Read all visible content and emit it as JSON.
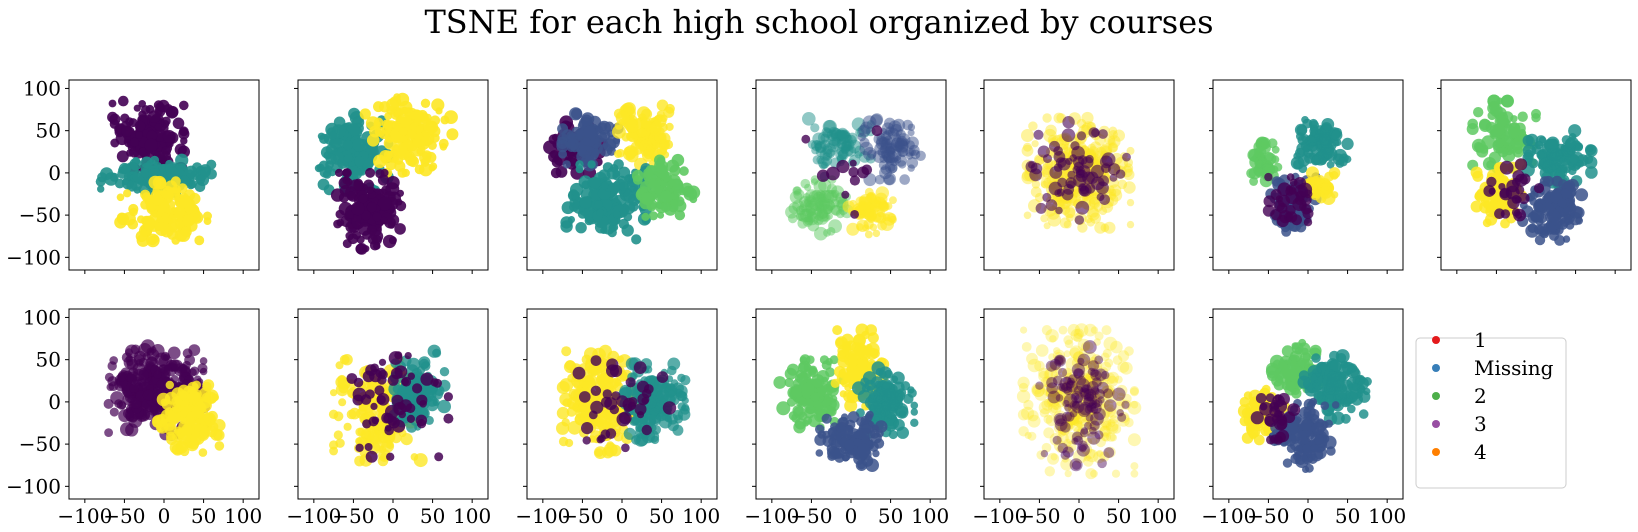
{
  "figure_title": "TSNE for each high school organized by courses",
  "palette": {
    "cat0": "#440154",
    "cat1": "#3b528b",
    "cat2": "#21918c",
    "cat3": "#5ec962",
    "cat4": "#fde725"
  },
  "legend": {
    "entries": [
      {
        "label": "1",
        "color": "#e41a1c"
      },
      {
        "label": "Missing",
        "color": "#377eb8"
      },
      {
        "label": "2",
        "color": "#4daf4a"
      },
      {
        "label": "3",
        "color": "#984ea3"
      },
      {
        "label": "4",
        "color": "#ff7f00"
      }
    ]
  },
  "chart_data": {
    "type": "scatter",
    "layout": {
      "rows": 2,
      "cols": 7,
      "panels": 13
    },
    "xlim": [
      -120,
      120
    ],
    "ylim": [
      -115,
      110
    ],
    "xticks": [
      -100,
      -50,
      0,
      50,
      100
    ],
    "yticks": [
      100,
      50,
      0,
      -50,
      -100
    ],
    "xtick_labels": [
      "−100",
      "−50",
      "0",
      "50",
      "100"
    ],
    "ytick_labels": [
      "100",
      "50",
      "0",
      "−50",
      "−100"
    ],
    "panels": [
      {
        "clusters": [
          {
            "c": 0,
            "cx": -20,
            "cy": 45,
            "rx": 45,
            "ry": 40,
            "n": 160,
            "a": 0.9
          },
          {
            "c": 2,
            "cx": -10,
            "cy": -5,
            "rx": 70,
            "ry": 20,
            "n": 130,
            "a": 0.9
          },
          {
            "c": 4,
            "cx": 0,
            "cy": -45,
            "rx": 55,
            "ry": 35,
            "n": 140,
            "a": 0.9
          }
        ]
      },
      {
        "clusters": [
          {
            "c": 2,
            "cx": -55,
            "cy": 25,
            "rx": 50,
            "ry": 45,
            "n": 150,
            "a": 0.9
          },
          {
            "c": 4,
            "cx": 20,
            "cy": 45,
            "rx": 55,
            "ry": 45,
            "n": 150,
            "a": 0.9
          },
          {
            "c": 0,
            "cx": -30,
            "cy": -45,
            "rx": 40,
            "ry": 45,
            "n": 150,
            "a": 0.9
          }
        ]
      },
      {
        "clusters": [
          {
            "c": 0,
            "cx": -60,
            "cy": 30,
            "rx": 40,
            "ry": 30,
            "n": 70,
            "a": 0.9
          },
          {
            "c": 1,
            "cx": -40,
            "cy": 40,
            "rx": 35,
            "ry": 30,
            "n": 90,
            "a": 0.85
          },
          {
            "c": 4,
            "cx": 30,
            "cy": 45,
            "rx": 35,
            "ry": 35,
            "n": 110,
            "a": 0.8
          },
          {
            "c": 2,
            "cx": -20,
            "cy": -35,
            "rx": 50,
            "ry": 45,
            "n": 170,
            "a": 0.9
          },
          {
            "c": 3,
            "cx": 55,
            "cy": -20,
            "rx": 35,
            "ry": 35,
            "n": 100,
            "a": 0.9
          }
        ]
      },
      {
        "clusters": [
          {
            "c": 2,
            "cx": -15,
            "cy": 30,
            "rx": 40,
            "ry": 35,
            "n": 80,
            "a": 0.5
          },
          {
            "c": 1,
            "cx": 50,
            "cy": 30,
            "rx": 38,
            "ry": 38,
            "n": 90,
            "a": 0.5
          },
          {
            "c": 3,
            "cx": -40,
            "cy": -40,
            "rx": 35,
            "ry": 32,
            "n": 90,
            "a": 0.5
          },
          {
            "c": 4,
            "cx": 25,
            "cy": -45,
            "rx": 28,
            "ry": 28,
            "n": 70,
            "a": 0.6
          },
          {
            "c": 0,
            "cx": 0,
            "cy": 0,
            "rx": 60,
            "ry": 50,
            "n": 12,
            "a": 0.8
          }
        ]
      },
      {
        "clusters": [
          {
            "c": 4,
            "cx": 0,
            "cy": 0,
            "rx": 65,
            "ry": 65,
            "n": 320,
            "a": 0.45
          },
          {
            "c": 0,
            "cx": 0,
            "cy": 0,
            "rx": 60,
            "ry": 60,
            "n": 70,
            "a": 0.6
          }
        ]
      },
      {
        "clusters": [
          {
            "c": 2,
            "cx": 15,
            "cy": 35,
            "rx": 35,
            "ry": 30,
            "n": 90,
            "a": 0.85
          },
          {
            "c": 3,
            "cx": -55,
            "cy": 10,
            "rx": 18,
            "ry": 25,
            "n": 45,
            "a": 0.8
          },
          {
            "c": 1,
            "cx": -20,
            "cy": -35,
            "rx": 30,
            "ry": 35,
            "n": 90,
            "a": 0.85
          },
          {
            "c": 4,
            "cx": 20,
            "cy": -15,
            "rx": 22,
            "ry": 15,
            "n": 40,
            "a": 0.8
          },
          {
            "c": 0,
            "cx": -25,
            "cy": -35,
            "rx": 25,
            "ry": 30,
            "n": 35,
            "a": 0.8
          }
        ]
      },
      {
        "clusters": [
          {
            "c": 3,
            "cx": -40,
            "cy": 45,
            "rx": 40,
            "ry": 40,
            "n": 90,
            "a": 0.85
          },
          {
            "c": 2,
            "cx": 30,
            "cy": 15,
            "rx": 40,
            "ry": 35,
            "n": 110,
            "a": 0.85
          },
          {
            "c": 4,
            "cx": -45,
            "cy": -25,
            "rx": 30,
            "ry": 35,
            "n": 100,
            "a": 0.85
          },
          {
            "c": 1,
            "cx": 20,
            "cy": -45,
            "rx": 38,
            "ry": 35,
            "n": 110,
            "a": 0.85
          },
          {
            "c": 0,
            "cx": -30,
            "cy": -20,
            "rx": 35,
            "ry": 30,
            "n": 25,
            "a": 0.8
          }
        ]
      },
      {
        "clusters": [
          {
            "c": 0,
            "cx": -10,
            "cy": 15,
            "rx": 60,
            "ry": 55,
            "n": 320,
            "a": 0.7
          },
          {
            "c": 4,
            "cx": 30,
            "cy": -20,
            "rx": 40,
            "ry": 40,
            "n": 150,
            "a": 0.85
          }
        ]
      },
      {
        "clusters": [
          {
            "c": 4,
            "cx": -20,
            "cy": -10,
            "rx": 55,
            "ry": 60,
            "n": 170,
            "a": 0.8
          },
          {
            "c": 2,
            "cx": 30,
            "cy": 15,
            "rx": 35,
            "ry": 45,
            "n": 120,
            "a": 0.8
          },
          {
            "c": 0,
            "cx": 0,
            "cy": 0,
            "rx": 70,
            "ry": 65,
            "n": 60,
            "a": 0.85
          }
        ]
      },
      {
        "clusters": [
          {
            "c": 4,
            "cx": -30,
            "cy": 0,
            "rx": 45,
            "ry": 60,
            "n": 190,
            "a": 0.8
          },
          {
            "c": 2,
            "cx": 40,
            "cy": 0,
            "rx": 40,
            "ry": 45,
            "n": 160,
            "a": 0.75
          },
          {
            "c": 0,
            "cx": 0,
            "cy": 0,
            "rx": 60,
            "ry": 60,
            "n": 40,
            "a": 0.8
          }
        ]
      },
      {
        "clusters": [
          {
            "c": 3,
            "cx": -50,
            "cy": 10,
            "rx": 40,
            "ry": 40,
            "n": 120,
            "a": 0.85
          },
          {
            "c": 4,
            "cx": 10,
            "cy": 40,
            "rx": 30,
            "ry": 45,
            "n": 110,
            "a": 0.85
          },
          {
            "c": 2,
            "cx": 45,
            "cy": 0,
            "rx": 35,
            "ry": 40,
            "n": 120,
            "a": 0.85
          },
          {
            "c": 1,
            "cx": 0,
            "cy": -45,
            "rx": 40,
            "ry": 30,
            "n": 110,
            "a": 0.85
          }
        ]
      },
      {
        "clusters": [
          {
            "c": 4,
            "cx": 0,
            "cy": 0,
            "rx": 70,
            "ry": 85,
            "n": 330,
            "a": 0.35
          },
          {
            "c": 0,
            "cx": 5,
            "cy": -5,
            "rx": 55,
            "ry": 70,
            "n": 110,
            "a": 0.45
          }
        ]
      },
      {
        "clusters": [
          {
            "c": 3,
            "cx": -15,
            "cy": 40,
            "rx": 30,
            "ry": 30,
            "n": 80,
            "a": 0.85
          },
          {
            "c": 2,
            "cx": 35,
            "cy": 20,
            "rx": 40,
            "ry": 40,
            "n": 120,
            "a": 0.85
          },
          {
            "c": 4,
            "cx": -55,
            "cy": -15,
            "rx": 25,
            "ry": 30,
            "n": 80,
            "a": 0.85
          },
          {
            "c": 1,
            "cx": -5,
            "cy": -40,
            "rx": 40,
            "ry": 40,
            "n": 120,
            "a": 0.85
          },
          {
            "c": 0,
            "cx": -40,
            "cy": -20,
            "rx": 30,
            "ry": 25,
            "n": 30,
            "a": 0.8
          }
        ]
      }
    ]
  }
}
